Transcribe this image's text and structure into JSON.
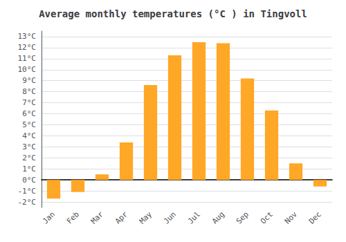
{
  "chart_data": {
    "type": "bar",
    "title": "Average monthly temperatures (°C ) in Tingvoll",
    "categories": [
      "Jan",
      "Feb",
      "Mar",
      "Apr",
      "May",
      "Jun",
      "Jul",
      "Aug",
      "Sep",
      "Oct",
      "Nov",
      "Dec"
    ],
    "values": [
      -1.7,
      -1.1,
      0.5,
      3.4,
      8.6,
      11.3,
      12.5,
      12.4,
      9.2,
      6.3,
      1.5,
      -0.6
    ],
    "color": "#FFA726",
    "ylim": [
      -2.5,
      13.5
    ],
    "yticks": [
      {
        "value": -2,
        "label": "-2°C"
      },
      {
        "value": -1,
        "label": "-1°C"
      },
      {
        "value": 0,
        "label": "0°C"
      },
      {
        "value": 1,
        "label": "1°C"
      },
      {
        "value": 2,
        "label": "2°C"
      },
      {
        "value": 3,
        "label": "3°C"
      },
      {
        "value": 4,
        "label": "4°C"
      },
      {
        "value": 5,
        "label": "5°C"
      },
      {
        "value": 6,
        "label": "6°C"
      },
      {
        "value": 7,
        "label": "7°C"
      },
      {
        "value": 8,
        "label": "8°C"
      },
      {
        "value": 9,
        "label": "9°C"
      },
      {
        "value": 10,
        "label": "10°C"
      },
      {
        "value": 11,
        "label": "11°C"
      },
      {
        "value": 12,
        "label": "12°C"
      },
      {
        "value": 13,
        "label": "13°C"
      }
    ],
    "grid": true
  }
}
